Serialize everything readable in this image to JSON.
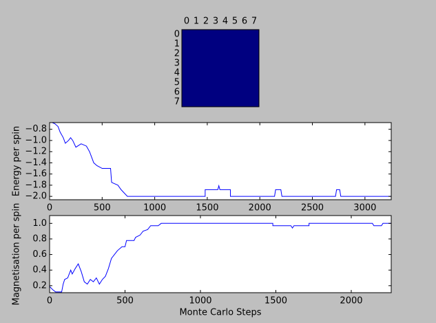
{
  "chart_data": [
    {
      "type": "heatmap",
      "xticks": [
        0,
        1,
        2,
        3,
        4,
        5,
        6,
        7
      ],
      "yticks": [
        0,
        1,
        2,
        3,
        4,
        5,
        6,
        7
      ],
      "values": [
        [
          1,
          1,
          1,
          1,
          1,
          1,
          1,
          1
        ],
        [
          1,
          1,
          1,
          1,
          1,
          1,
          1,
          1
        ],
        [
          1,
          1,
          1,
          1,
          1,
          1,
          1,
          1
        ],
        [
          1,
          1,
          1,
          1,
          1,
          1,
          1,
          1
        ],
        [
          1,
          1,
          1,
          1,
          1,
          1,
          1,
          1
        ],
        [
          1,
          1,
          1,
          1,
          1,
          1,
          1,
          1
        ],
        [
          1,
          1,
          1,
          1,
          1,
          1,
          1,
          1
        ],
        [
          1,
          1,
          1,
          1,
          1,
          1,
          1,
          1
        ]
      ],
      "color": "#000080"
    },
    {
      "type": "line",
      "ylabel": "Energy per spin",
      "xlim": [
        0,
        3250
      ],
      "ylim": [
        -2.06,
        -0.68
      ],
      "xticks": [
        0,
        500,
        1000,
        1500,
        2000,
        2500,
        3000
      ],
      "yticks": [
        {
          "value": -0.8,
          "label": "−0.8"
        },
        {
          "value": -1.0,
          "label": "−1.0"
        },
        {
          "value": -1.2,
          "label": "−1.2"
        },
        {
          "value": -1.4,
          "label": "−1.4"
        },
        {
          "value": -1.6,
          "label": "−1.6"
        },
        {
          "value": -1.8,
          "label": "−1.8"
        },
        {
          "value": -2.0,
          "label": "−2.0"
        }
      ],
      "x": [
        0,
        50,
        80,
        100,
        130,
        150,
        180,
        200,
        220,
        250,
        300,
        350,
        380,
        400,
        420,
        450,
        500,
        580,
        590,
        650,
        680,
        740,
        1480,
        1480,
        1600,
        1610,
        1620,
        1720,
        1720,
        2140,
        2150,
        2200,
        2210,
        2720,
        2730,
        2760,
        2770,
        3250
      ],
      "series": [
        {
          "color": "#0000ff",
          "values": [
            -0.66,
            -0.7,
            -0.75,
            -0.85,
            -0.95,
            -1.05,
            -1.0,
            -0.95,
            -1.0,
            -1.12,
            -1.06,
            -1.1,
            -1.2,
            -1.3,
            -1.4,
            -1.45,
            -1.5,
            -1.5,
            -1.75,
            -1.8,
            -1.88,
            -2.0,
            -2.0,
            -1.88,
            -1.88,
            -1.81,
            -1.88,
            -1.88,
            -2.0,
            -2.0,
            -1.88,
            -1.88,
            -2.0,
            -2.0,
            -1.88,
            -1.88,
            -2.0,
            -2.0
          ]
        }
      ]
    },
    {
      "type": "line",
      "xlabel": "Monte Carlo Steps",
      "ylabel": "Magnetisation per spin",
      "xlim": [
        0,
        2265
      ],
      "ylim": [
        0.11,
        1.1
      ],
      "xticks": [
        0,
        500,
        1000,
        1500,
        2000
      ],
      "yticks": [
        0.2,
        0.4,
        0.6,
        0.8,
        {
          "value": 1.0,
          "label": "1.0"
        }
      ],
      "x": [
        0,
        20,
        40,
        80,
        90,
        100,
        120,
        140,
        150,
        170,
        190,
        210,
        230,
        250,
        270,
        290,
        310,
        330,
        350,
        370,
        390,
        410,
        430,
        450,
        480,
        500,
        510,
        560,
        570,
        600,
        620,
        650,
        670,
        720,
        740,
        1480,
        1480,
        1600,
        1610,
        1620,
        1720,
        1720,
        2140,
        2150,
        2200,
        2210,
        2265
      ],
      "series": [
        {
          "color": "#0000ff",
          "values": [
            0.19,
            0.15,
            0.12,
            0.12,
            0.22,
            0.28,
            0.3,
            0.4,
            0.35,
            0.42,
            0.48,
            0.38,
            0.25,
            0.22,
            0.28,
            0.25,
            0.3,
            0.22,
            0.28,
            0.32,
            0.42,
            0.55,
            0.6,
            0.65,
            0.7,
            0.7,
            0.78,
            0.78,
            0.82,
            0.85,
            0.9,
            0.92,
            0.97,
            0.97,
            1.0,
            1.0,
            0.97,
            0.97,
            0.94,
            0.97,
            0.97,
            1.0,
            1.0,
            0.97,
            0.97,
            1.0,
            1.0
          ]
        }
      ]
    }
  ]
}
